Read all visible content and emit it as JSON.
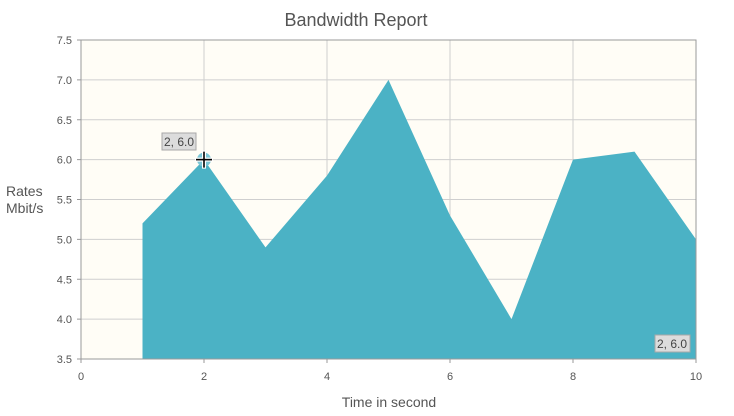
{
  "chart_data": {
    "type": "area",
    "title": "Bandwidth Report",
    "xlabel": "Time in second",
    "ylabel_lines": [
      "Rates",
      "Mbit/s"
    ],
    "xlim": [
      0,
      10
    ],
    "ylim": [
      3.5,
      7.5
    ],
    "x_ticks": [
      0,
      2,
      4,
      6,
      8,
      10
    ],
    "x_tick_labels": [
      "0",
      "2",
      "4",
      "6",
      "8",
      "10"
    ],
    "y_ticks": [
      3.5,
      4.0,
      4.5,
      5.0,
      5.5,
      6.0,
      6.5,
      7.0,
      7.5
    ],
    "y_tick_labels": [
      "3.5",
      "4.0",
      "4.5",
      "5.0",
      "5.5",
      "6.0",
      "6.5",
      "7.0",
      "7.5"
    ],
    "grid": true,
    "series": [
      {
        "x": [
          1,
          2,
          3,
          4,
          5,
          6,
          7,
          8,
          9,
          10
        ],
        "values": [
          5.2,
          6.0,
          4.9,
          5.8,
          7.0,
          5.3,
          4.0,
          6.0,
          6.1,
          5.0
        ]
      }
    ],
    "highlight": {
      "x": 2,
      "y": 6.0
    },
    "tooltip_label": "2, 6.0",
    "cursor_readout": "2, 6.0",
    "colors": {
      "area": "#4bb2c5",
      "plot_background": "#fffdf6",
      "highlight_point": "#7cc6d6"
    }
  }
}
